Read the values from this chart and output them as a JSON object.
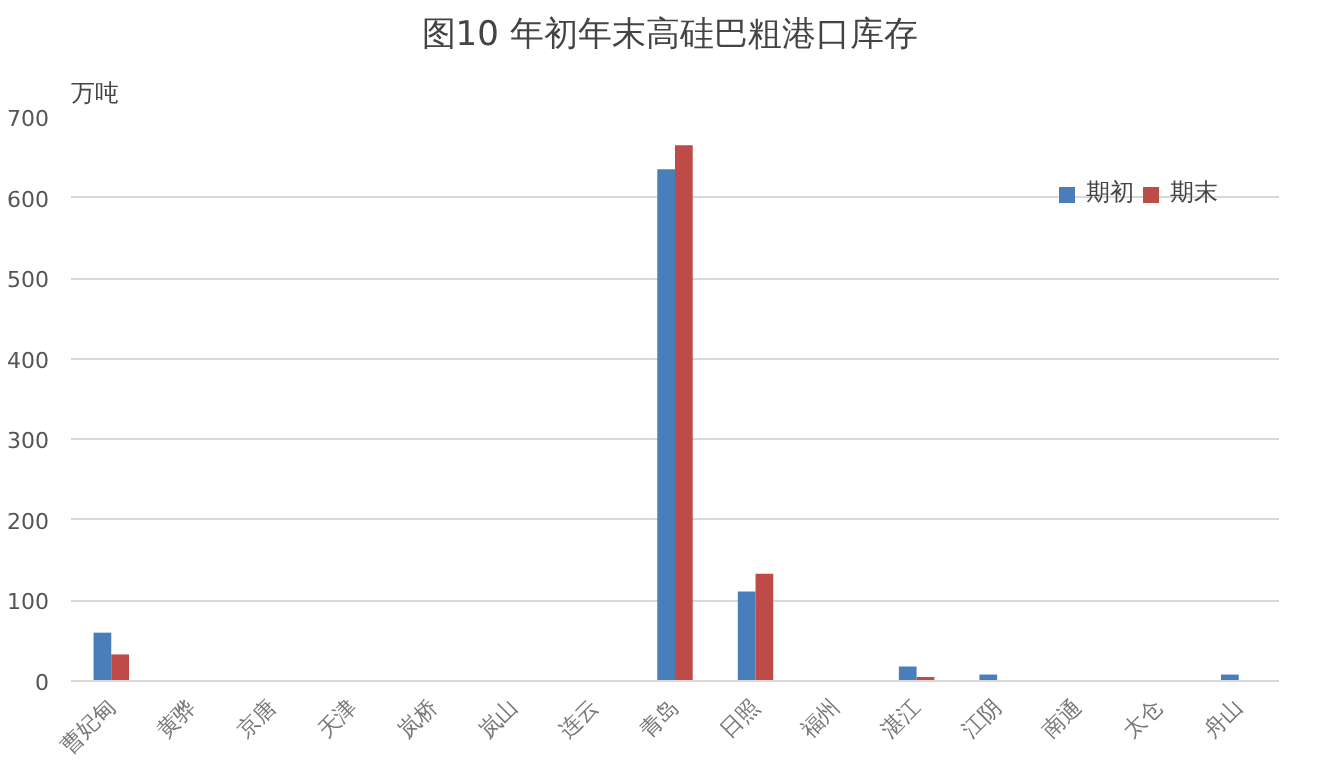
{
  "chart_data": {
    "type": "bar",
    "title": "图10  年初年末高硅巴粗港口库存",
    "ylabel": "万吨",
    "categories": [
      "曹妃甸",
      "黄骅",
      "京唐",
      "天津",
      "岚桥",
      "岚山",
      "连云",
      "青岛",
      "日照",
      "福州",
      "湛江",
      "江阴",
      "南通",
      "太仓",
      "舟山"
    ],
    "series": [
      {
        "name": "期初",
        "color": "#4a7ebb",
        "values": [
          60,
          0,
          0,
          0,
          0,
          0,
          0,
          635,
          111,
          0,
          18,
          8,
          0,
          0,
          8
        ]
      },
      {
        "name": "期末",
        "color": "#be4b48",
        "values": [
          33,
          0,
          0,
          0,
          0,
          0,
          0,
          665,
          133,
          0,
          5,
          0,
          0,
          0,
          0
        ]
      }
    ],
    "ylim": [
      0,
      700
    ],
    "yticks": [
      0,
      100,
      200,
      300,
      400,
      500,
      600,
      700
    ],
    "grid": "y",
    "legend": "top right"
  }
}
